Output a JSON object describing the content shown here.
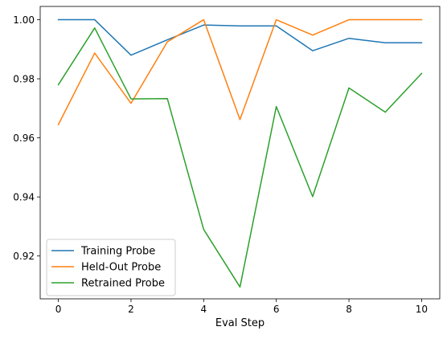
{
  "chart_data": {
    "type": "line",
    "title": "",
    "xlabel": "Eval Step",
    "ylabel": "",
    "x": [
      0,
      1,
      2,
      3,
      4,
      5,
      6,
      7,
      8,
      9,
      10
    ],
    "xlim": [
      -0.5,
      10.5
    ],
    "ylim": [
      0.9055,
      1.0045
    ],
    "xticks": [
      0,
      2,
      4,
      6,
      8,
      10
    ],
    "yticks": [
      0.92,
      0.94,
      0.96,
      0.98,
      1.0
    ],
    "ytick_labels": [
      "0.92",
      "0.94",
      "0.96",
      "0.98",
      "1.00"
    ],
    "grid": false,
    "legend_position": "lower-left",
    "series": [
      {
        "name": "Training Probe",
        "color": "#1f77b4",
        "values": [
          1.0,
          1.0,
          0.988,
          0.9932,
          0.9982,
          0.9979,
          0.9979,
          0.9895,
          0.9937,
          0.9922,
          0.9922
        ]
      },
      {
        "name": "Held-Out Probe",
        "color": "#ff7f0e",
        "values": [
          0.9645,
          0.9887,
          0.9717,
          0.9925,
          1.0,
          0.9662,
          1.0,
          0.9948,
          1.0,
          1.0,
          1.0
        ]
      },
      {
        "name": "Retrained Probe",
        "color": "#2ca02c",
        "values": [
          0.978,
          0.9972,
          0.9732,
          0.9733,
          0.929,
          0.9095,
          0.9706,
          0.9401,
          0.9769,
          0.9687,
          0.9818
        ]
      }
    ]
  }
}
